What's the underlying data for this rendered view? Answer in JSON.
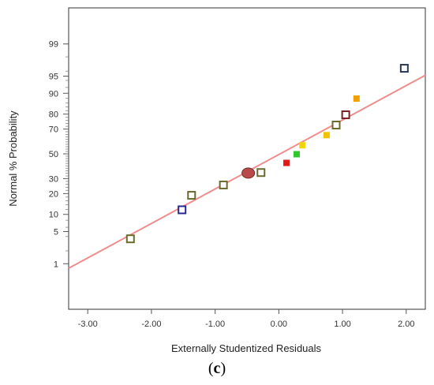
{
  "chart_data": {
    "type": "scatter",
    "xlabel": "Externally Studentized Residuals",
    "ylabel": "Normal % Probability",
    "caption": {
      "open": "(",
      "letter": "c",
      "close": ")"
    },
    "x_ticks": [
      "-3.00",
      "-2.00",
      "-1.00",
      "0.00",
      "1.00",
      "2.00"
    ],
    "x_tick_values": [
      -3,
      -2,
      -1,
      0,
      1,
      2
    ],
    "xlim": [
      -3.3,
      2.3
    ],
    "y_ticks": [
      "1",
      "5",
      "10",
      "20",
      "30",
      "50",
      "70",
      "80",
      "90",
      "95",
      "99"
    ],
    "y_tick_values": [
      1,
      5,
      10,
      20,
      30,
      50,
      70,
      80,
      90,
      95,
      99
    ],
    "ylim": [
      0.05,
      99.9
    ],
    "y_scale": "normal-probability",
    "grid": false,
    "reference_line": {
      "color": "#f08c8c",
      "points": [
        [
          -3.3,
          0.77
        ],
        [
          2.3,
          95.2
        ]
      ]
    },
    "points": [
      {
        "x": -2.33,
        "y": 3.6,
        "shape": "square",
        "color": "#6b6a2e"
      },
      {
        "x": -1.52,
        "y": 11.8,
        "shape": "square",
        "color": "#2a2a8a"
      },
      {
        "x": -1.37,
        "y": 19.0,
        "shape": "square",
        "color": "#6b6a2e"
      },
      {
        "x": -0.87,
        "y": 25.5,
        "shape": "square",
        "color": "#6b6a2e"
      },
      {
        "x": -0.48,
        "y": 34.2,
        "shape": "circle",
        "color": "#b84a4a"
      },
      {
        "x": -0.28,
        "y": 34.6,
        "shape": "square",
        "color": "#6b6a2e"
      },
      {
        "x": 0.12,
        "y": 42.4,
        "shape": "filled-square",
        "color": "#e01a1a"
      },
      {
        "x": 0.28,
        "y": 49.7,
        "shape": "filled-square",
        "color": "#2ec82e"
      },
      {
        "x": 0.37,
        "y": 57.2,
        "shape": "filled-square",
        "color": "#f2d600"
      },
      {
        "x": 0.75,
        "y": 65.4,
        "shape": "filled-square",
        "color": "#f2c200"
      },
      {
        "x": 0.9,
        "y": 72.9,
        "shape": "square",
        "color": "#6b6a2e"
      },
      {
        "x": 1.05,
        "y": 79.6,
        "shape": "square",
        "color": "#7a2020"
      },
      {
        "x": 1.22,
        "y": 87.9,
        "shape": "filled-square",
        "color": "#f2a000"
      },
      {
        "x": 1.97,
        "y": 96.5,
        "shape": "square",
        "color": "#2a3a5a"
      }
    ]
  }
}
